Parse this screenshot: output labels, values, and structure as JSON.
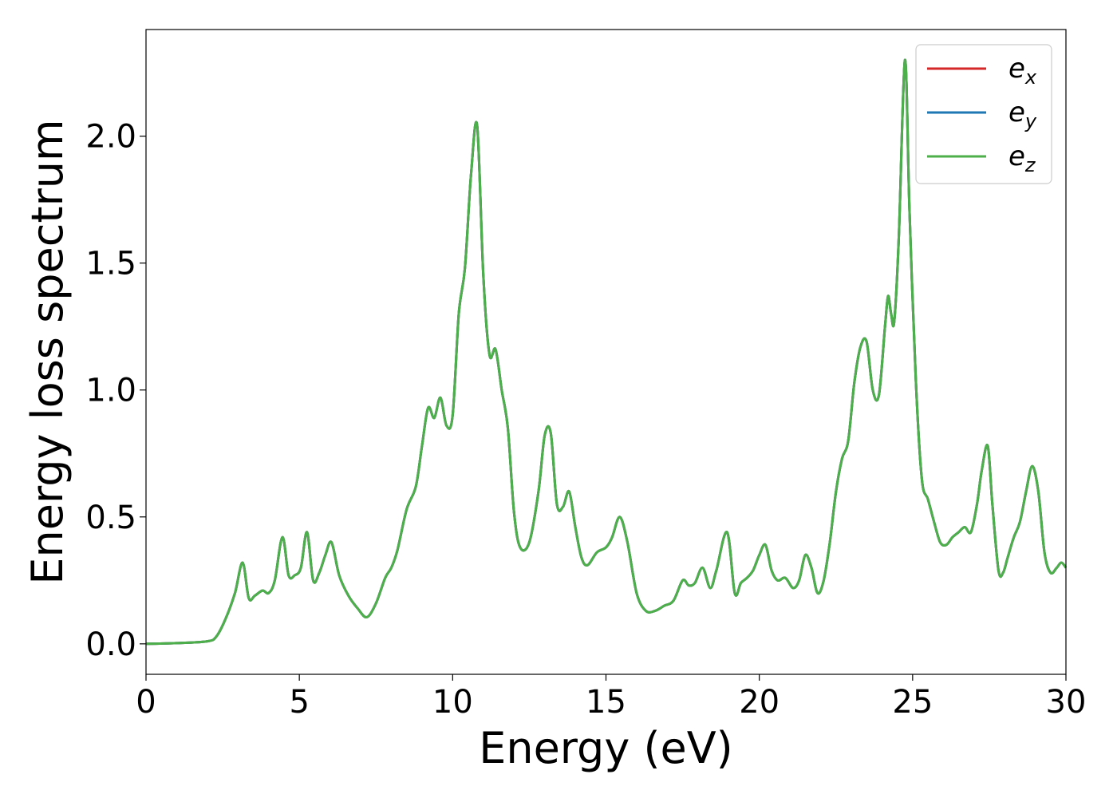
{
  "chart_data": {
    "type": "line",
    "xlabel": "Energy (eV)",
    "ylabel": "Energy loss spectrum",
    "xlim": [
      0,
      30
    ],
    "ylim": [
      -0.12,
      2.42
    ],
    "xticks": [
      0,
      5,
      10,
      15,
      20,
      25,
      30
    ],
    "xtick_labels": [
      "0",
      "5",
      "10",
      "15",
      "20",
      "25",
      "30"
    ],
    "yticks": [
      0.0,
      0.5,
      1.0,
      1.5,
      2.0
    ],
    "ytick_labels": [
      "0.0",
      "0.5",
      "1.0",
      "1.5",
      "2.0"
    ],
    "grid": false,
    "legend": {
      "placement": "top-right",
      "entries": [
        {
          "base": "e",
          "sub": "x",
          "color": "#d62728"
        },
        {
          "base": "e",
          "sub": "y",
          "color": "#1f77b4"
        },
        {
          "base": "e",
          "sub": "z",
          "color": "#4daf4a"
        }
      ]
    },
    "x": [
      0,
      1.0,
      2.0,
      2.3,
      2.6,
      2.9,
      3.15,
      3.35,
      3.55,
      3.8,
      4.0,
      4.2,
      4.45,
      4.65,
      4.85,
      5.05,
      5.25,
      5.45,
      5.65,
      5.85,
      6.05,
      6.3,
      6.6,
      6.9,
      7.2,
      7.5,
      7.8,
      8.0,
      8.2,
      8.5,
      8.8,
      9.0,
      9.2,
      9.4,
      9.6,
      9.8,
      10.0,
      10.2,
      10.4,
      10.6,
      10.8,
      11.0,
      11.2,
      11.4,
      11.6,
      11.8,
      12.0,
      12.2,
      12.5,
      12.8,
      13.0,
      13.2,
      13.4,
      13.6,
      13.8,
      14.0,
      14.2,
      14.4,
      14.7,
      15.0,
      15.2,
      15.45,
      15.7,
      16.0,
      16.3,
      16.6,
      16.9,
      17.2,
      17.5,
      17.7,
      17.9,
      18.15,
      18.4,
      18.6,
      18.95,
      19.2,
      19.4,
      19.6,
      19.8,
      20.0,
      20.2,
      20.4,
      20.6,
      20.85,
      21.1,
      21.3,
      21.5,
      21.7,
      21.9,
      22.1,
      22.3,
      22.5,
      22.7,
      22.9,
      23.1,
      23.3,
      23.5,
      23.7,
      23.9,
      24.1,
      24.2,
      24.3,
      24.4,
      24.55,
      24.75,
      24.9,
      25.1,
      25.3,
      25.5,
      25.7,
      25.9,
      26.1,
      26.3,
      26.5,
      26.7,
      26.9,
      27.1,
      27.25,
      27.45,
      27.6,
      27.8,
      27.95,
      28.1,
      28.3,
      28.5,
      28.7,
      28.9,
      29.1,
      29.3,
      29.5,
      29.7,
      29.85,
      30.0
    ],
    "series": [
      {
        "name": "e_x",
        "color": "#d62728",
        "y": [
          0.0,
          0.003,
          0.01,
          0.03,
          0.1,
          0.2,
          0.32,
          0.18,
          0.19,
          0.21,
          0.2,
          0.25,
          0.42,
          0.27,
          0.27,
          0.3,
          0.44,
          0.25,
          0.28,
          0.35,
          0.4,
          0.27,
          0.19,
          0.14,
          0.105,
          0.16,
          0.26,
          0.3,
          0.37,
          0.53,
          0.62,
          0.78,
          0.93,
          0.89,
          0.97,
          0.86,
          0.9,
          1.3,
          1.48,
          1.85,
          2.04,
          1.45,
          1.14,
          1.16,
          1.0,
          0.85,
          0.52,
          0.38,
          0.4,
          0.6,
          0.82,
          0.83,
          0.55,
          0.54,
          0.6,
          0.46,
          0.34,
          0.31,
          0.36,
          0.38,
          0.42,
          0.5,
          0.4,
          0.2,
          0.13,
          0.13,
          0.15,
          0.17,
          0.25,
          0.23,
          0.24,
          0.3,
          0.22,
          0.29,
          0.44,
          0.2,
          0.24,
          0.26,
          0.29,
          0.35,
          0.39,
          0.29,
          0.25,
          0.26,
          0.22,
          0.25,
          0.35,
          0.3,
          0.2,
          0.25,
          0.4,
          0.6,
          0.73,
          0.8,
          1.03,
          1.17,
          1.19,
          1.0,
          0.98,
          1.25,
          1.37,
          1.3,
          1.27,
          1.6,
          2.3,
          1.7,
          1.05,
          0.65,
          0.57,
          0.48,
          0.4,
          0.39,
          0.42,
          0.44,
          0.46,
          0.44,
          0.55,
          0.68,
          0.78,
          0.55,
          0.29,
          0.28,
          0.34,
          0.42,
          0.48,
          0.6,
          0.7,
          0.6,
          0.36,
          0.28,
          0.3,
          0.32,
          0.3
        ]
      },
      {
        "name": "e_y",
        "color": "#1f77b4",
        "y": [
          0.0,
          0.003,
          0.01,
          0.03,
          0.1,
          0.2,
          0.32,
          0.18,
          0.19,
          0.21,
          0.2,
          0.25,
          0.42,
          0.27,
          0.27,
          0.3,
          0.44,
          0.25,
          0.28,
          0.35,
          0.4,
          0.27,
          0.19,
          0.14,
          0.105,
          0.16,
          0.26,
          0.3,
          0.37,
          0.53,
          0.62,
          0.78,
          0.93,
          0.89,
          0.97,
          0.86,
          0.9,
          1.3,
          1.48,
          1.85,
          2.04,
          1.45,
          1.14,
          1.16,
          1.0,
          0.85,
          0.52,
          0.38,
          0.4,
          0.6,
          0.82,
          0.83,
          0.55,
          0.54,
          0.6,
          0.46,
          0.34,
          0.31,
          0.36,
          0.38,
          0.42,
          0.5,
          0.4,
          0.2,
          0.13,
          0.13,
          0.15,
          0.17,
          0.25,
          0.23,
          0.24,
          0.3,
          0.22,
          0.29,
          0.44,
          0.2,
          0.24,
          0.26,
          0.29,
          0.35,
          0.39,
          0.29,
          0.25,
          0.26,
          0.22,
          0.25,
          0.35,
          0.3,
          0.2,
          0.25,
          0.4,
          0.6,
          0.73,
          0.8,
          1.03,
          1.17,
          1.19,
          1.0,
          0.98,
          1.25,
          1.37,
          1.3,
          1.27,
          1.6,
          2.3,
          1.7,
          1.05,
          0.65,
          0.57,
          0.48,
          0.4,
          0.39,
          0.42,
          0.44,
          0.46,
          0.44,
          0.55,
          0.68,
          0.78,
          0.55,
          0.29,
          0.28,
          0.34,
          0.42,
          0.48,
          0.6,
          0.7,
          0.6,
          0.36,
          0.28,
          0.3,
          0.32,
          0.3
        ]
      },
      {
        "name": "e_z",
        "color": "#4daf4a",
        "y": [
          0.0,
          0.003,
          0.01,
          0.03,
          0.1,
          0.2,
          0.32,
          0.18,
          0.19,
          0.21,
          0.2,
          0.25,
          0.42,
          0.27,
          0.27,
          0.3,
          0.44,
          0.25,
          0.28,
          0.35,
          0.4,
          0.27,
          0.19,
          0.14,
          0.105,
          0.16,
          0.26,
          0.3,
          0.37,
          0.53,
          0.62,
          0.78,
          0.93,
          0.89,
          0.97,
          0.86,
          0.9,
          1.3,
          1.48,
          1.85,
          2.04,
          1.45,
          1.14,
          1.16,
          1.0,
          0.85,
          0.52,
          0.38,
          0.4,
          0.6,
          0.82,
          0.83,
          0.55,
          0.54,
          0.6,
          0.46,
          0.34,
          0.31,
          0.36,
          0.38,
          0.42,
          0.5,
          0.4,
          0.2,
          0.13,
          0.13,
          0.15,
          0.17,
          0.25,
          0.23,
          0.24,
          0.3,
          0.22,
          0.29,
          0.44,
          0.2,
          0.24,
          0.26,
          0.29,
          0.35,
          0.39,
          0.29,
          0.25,
          0.26,
          0.22,
          0.25,
          0.35,
          0.3,
          0.2,
          0.25,
          0.4,
          0.6,
          0.73,
          0.8,
          1.03,
          1.17,
          1.19,
          1.0,
          0.98,
          1.25,
          1.37,
          1.3,
          1.27,
          1.6,
          2.3,
          1.7,
          1.05,
          0.65,
          0.57,
          0.48,
          0.4,
          0.39,
          0.42,
          0.44,
          0.46,
          0.44,
          0.55,
          0.68,
          0.78,
          0.55,
          0.29,
          0.28,
          0.34,
          0.42,
          0.48,
          0.6,
          0.7,
          0.6,
          0.36,
          0.28,
          0.3,
          0.32,
          0.3
        ]
      }
    ]
  }
}
